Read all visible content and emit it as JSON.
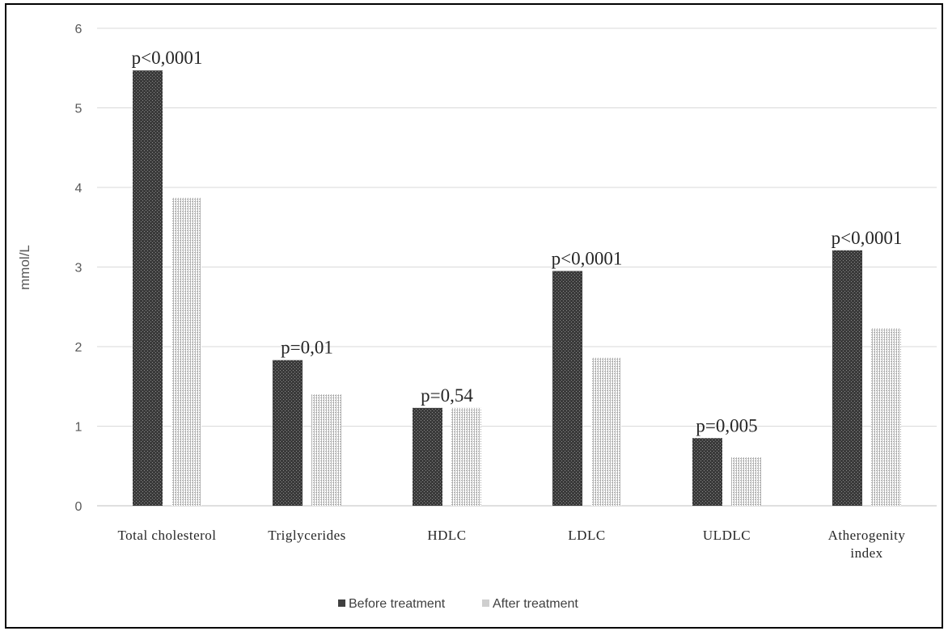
{
  "chart_data": {
    "type": "bar",
    "ylabel": "mmol/L",
    "xlabel": "",
    "ylim": [
      0,
      6
    ],
    "yticks": [
      "0",
      "1",
      "2",
      "3",
      "4",
      "5",
      "6"
    ],
    "grid": true,
    "legend_position": "bottom",
    "categories": [
      [
        "Total cholesterol"
      ],
      [
        "Triglycerides"
      ],
      [
        "HDLC"
      ],
      [
        "LDLC"
      ],
      [
        "ULDLC"
      ],
      [
        "Atherogenity",
        "index"
      ]
    ],
    "series": [
      {
        "name": "Before treatment",
        "values": [
          5.47,
          1.83,
          1.23,
          2.95,
          0.85,
          3.21
        ],
        "color": "#404040"
      },
      {
        "name": "After treatment",
        "values": [
          3.87,
          1.4,
          1.23,
          1.86,
          0.61,
          2.23
        ],
        "color": "#d0d0d0"
      }
    ],
    "annotations": [
      "p<0,0001",
      "p=0,01",
      "p=0,54",
      "p<0,0001",
      "p=0,005",
      "p<0,0001"
    ]
  }
}
